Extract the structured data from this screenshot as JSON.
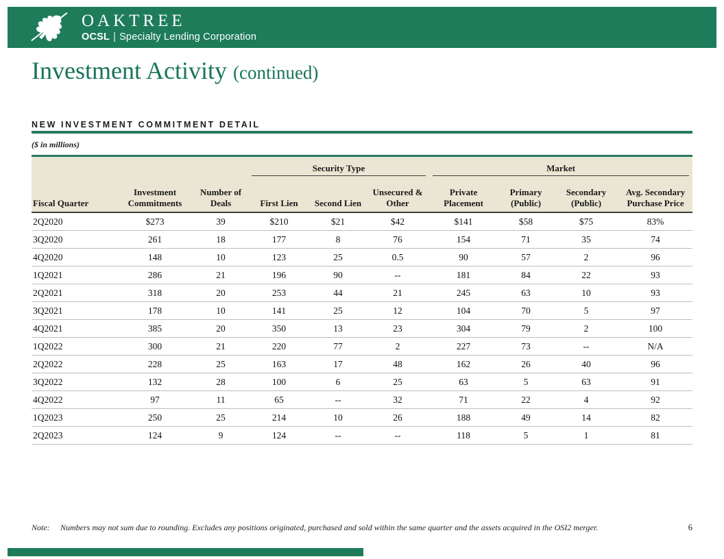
{
  "brand": {
    "name": "OAKTREE",
    "sub_brand": "OCSL",
    "divider": "|",
    "sub_text": "Specialty Lending Corporation"
  },
  "title": {
    "main": "Investment Activity",
    "suffix": "(continued)"
  },
  "section": {
    "heading": "NEW INVESTMENT COMMITMENT DETAIL",
    "units_note": "($ in millions)"
  },
  "table": {
    "group_headers": [
      {
        "label": "Security Type",
        "span": 3
      },
      {
        "label": "Market",
        "span": 4
      }
    ],
    "columns": [
      "Fiscal Quarter",
      "Investment Commitments",
      "Number of Deals",
      "First Lien",
      "Second Lien",
      "Unsecured & Other",
      "Private Placement",
      "Primary (Public)",
      "Secondary (Public)",
      "Avg. Secondary Purchase Price"
    ],
    "rows": [
      [
        "2Q2020",
        "$273",
        "39",
        "$210",
        "$21",
        "$42",
        "$141",
        "$58",
        "$75",
        "83%"
      ],
      [
        "3Q2020",
        "261",
        "18",
        "177",
        "8",
        "76",
        "154",
        "71",
        "35",
        "74"
      ],
      [
        "4Q2020",
        "148",
        "10",
        "123",
        "25",
        "0.5",
        "90",
        "57",
        "2",
        "96"
      ],
      [
        "1Q2021",
        "286",
        "21",
        "196",
        "90",
        "--",
        "181",
        "84",
        "22",
        "93"
      ],
      [
        "2Q2021",
        "318",
        "20",
        "253",
        "44",
        "21",
        "245",
        "63",
        "10",
        "93"
      ],
      [
        "3Q2021",
        "178",
        "10",
        "141",
        "25",
        "12",
        "104",
        "70",
        "5",
        "97"
      ],
      [
        "4Q2021",
        "385",
        "20",
        "350",
        "13",
        "23",
        "304",
        "79",
        "2",
        "100"
      ],
      [
        "1Q2022",
        "300",
        "21",
        "220",
        "77",
        "2",
        "227",
        "73",
        "--",
        "N/A"
      ],
      [
        "2Q2022",
        "228",
        "25",
        "163",
        "17",
        "48",
        "162",
        "26",
        "40",
        "96"
      ],
      [
        "3Q2022",
        "132",
        "28",
        "100",
        "6",
        "25",
        "63",
        "5",
        "63",
        "91"
      ],
      [
        "4Q2022",
        "97",
        "11",
        "65",
        "--",
        "32",
        "71",
        "22",
        "4",
        "92"
      ],
      [
        "1Q2023",
        "250",
        "25",
        "214",
        "10",
        "26",
        "188",
        "49",
        "14",
        "82"
      ],
      [
        "2Q2023",
        "124",
        "9",
        "124",
        "--",
        "--",
        "118",
        "5",
        "1",
        "81"
      ]
    ]
  },
  "footer": {
    "note_label": "Note:",
    "note_text": "Numbers may not sum due to rounding. Excludes any positions originated, purchased and sold within the same quarter and the assets acquired in the OSI2 merger.",
    "page_number": "6"
  },
  "colors": {
    "brand_green": "#1E7C5B",
    "title_green": "#17745A",
    "header_beige": "#EAE6D3",
    "rule_gray": "#BDBDBD"
  }
}
